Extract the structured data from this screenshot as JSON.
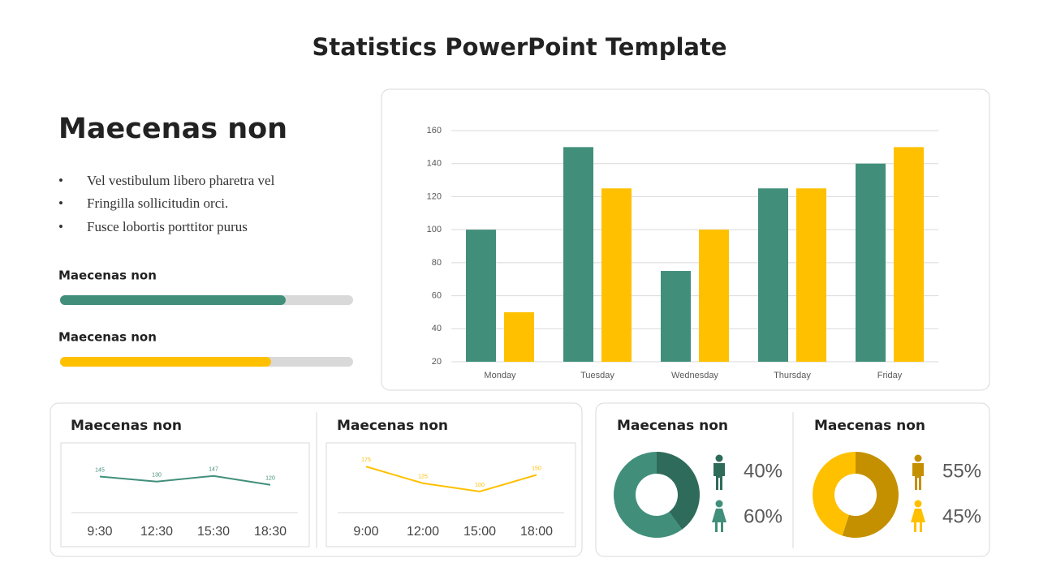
{
  "title": "Statistics PowerPoint Template",
  "intro": {
    "heading": "Maecenas non",
    "bullets": [
      "Vel vestibulum libero pharetra vel",
      "Fringilla sollicitudin orci.",
      "Fusce lobortis porttitor purus"
    ]
  },
  "chart_data": [
    {
      "type": "progress",
      "categories": [
        "Maecenas non",
        "Maecenas non"
      ],
      "values": [
        77,
        72
      ],
      "colors": [
        "#418f7b",
        "#ffc000"
      ],
      "xlim": [
        0,
        100
      ]
    },
    {
      "type": "bar",
      "categories": [
        "Monday",
        "Tuesday",
        "Wednesday",
        "Thursday",
        "Friday"
      ],
      "series": [
        {
          "color": "#418f7b",
          "values": [
            100,
            150,
            75,
            125,
            140
          ]
        },
        {
          "color": "#ffc000",
          "values": [
            50,
            125,
            100,
            125,
            150
          ]
        }
      ],
      "ylim": [
        20,
        160
      ],
      "yticks": [
        20,
        40,
        60,
        80,
        100,
        120,
        140,
        160
      ],
      "grid": true
    },
    {
      "type": "line",
      "title": "Maecenas non",
      "categories": [
        "9:30",
        "12:30",
        "15:30",
        "18:30"
      ],
      "values": [
        145,
        130,
        147,
        120
      ],
      "color": "#418f7b"
    },
    {
      "type": "line",
      "title": "Maecenas non",
      "categories": [
        "9:00",
        "12:00",
        "15:00",
        "18:00"
      ],
      "values": [
        175,
        125,
        100,
        150
      ],
      "color": "#ffc000"
    },
    {
      "type": "pie",
      "title": "Maecenas non",
      "values": [
        40,
        60
      ],
      "value_labels": [
        "40%",
        "60%"
      ],
      "colors": [
        "#2f6b5a",
        "#418f7b"
      ]
    },
    {
      "type": "pie",
      "title": "Maecenas non",
      "values": [
        55,
        45
      ],
      "value_labels": [
        "55%",
        "45%"
      ],
      "colors": [
        "#c49000",
        "#ffc000"
      ]
    }
  ]
}
